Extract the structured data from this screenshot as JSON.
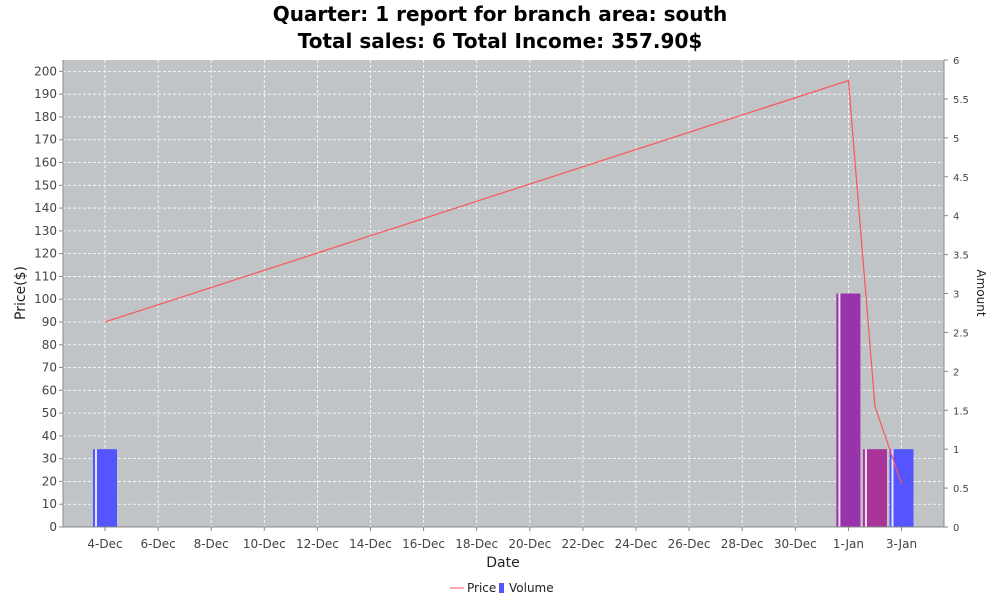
{
  "title": {
    "line1": "Quarter: 1 report for branch area: south",
    "line2": "Total sales: 6 Total Income: 357.90$"
  },
  "chart_data": {
    "type": "bar",
    "title": "Quarter: 1 report for branch area: south\nTotal sales: 6 Total Income: 357.90$",
    "xlabel": "Date",
    "ylabel": "Price($)",
    "y2label": "Amount",
    "x_ticks": [
      "4-Dec",
      "6-Dec",
      "8-Dec",
      "10-Dec",
      "12-Dec",
      "14-Dec",
      "16-Dec",
      "18-Dec",
      "20-Dec",
      "22-Dec",
      "24-Dec",
      "26-Dec",
      "28-Dec",
      "30-Dec",
      "1-Jan",
      "3-Jan"
    ],
    "x_tick_days": [
      0,
      2,
      4,
      6,
      8,
      10,
      12,
      14,
      16,
      18,
      20,
      22,
      24,
      26,
      28,
      30
    ],
    "y_ticks": [
      "0",
      "10",
      "20",
      "30",
      "40",
      "50",
      "60",
      "70",
      "80",
      "90",
      "100",
      "110",
      "120",
      "130",
      "140",
      "150",
      "160",
      "170",
      "180",
      "190",
      "200"
    ],
    "y2_ticks": [
      "0",
      "0.5",
      "1",
      "1.5",
      "2",
      "2.5",
      "3",
      "3.5",
      "4",
      "4.5",
      "5",
      "5.5",
      "6"
    ],
    "ylim": [
      0,
      205
    ],
    "y2lim": [
      0,
      6
    ],
    "series": [
      {
        "name": "Price",
        "kind": "line",
        "color": "#ff5555",
        "points": [
          {
            "x": "4-Dec",
            "y": 90
          },
          {
            "x": "1-Jan",
            "y": 196
          },
          {
            "x": "2-Jan",
            "y": 53
          },
          {
            "x": "3-Jan",
            "y": 19
          }
        ]
      },
      {
        "name": "Volume",
        "kind": "bar",
        "color": "#5555ff",
        "axis": "right",
        "points": [
          {
            "x": "4-Dec",
            "y": 1,
            "color": "#5555ff"
          },
          {
            "x": "1-Jan",
            "y": 3,
            "color": "#9933aa"
          },
          {
            "x": "2-Jan",
            "y": 1,
            "color": "#aa3399"
          },
          {
            "x": "3-Jan",
            "y": 1,
            "color": "#5555ff"
          }
        ]
      }
    ],
    "grid": true,
    "legend": "bottom-center",
    "colors": {
      "plot_background": "#c0c4c6",
      "gridline": "#ffffff"
    }
  }
}
